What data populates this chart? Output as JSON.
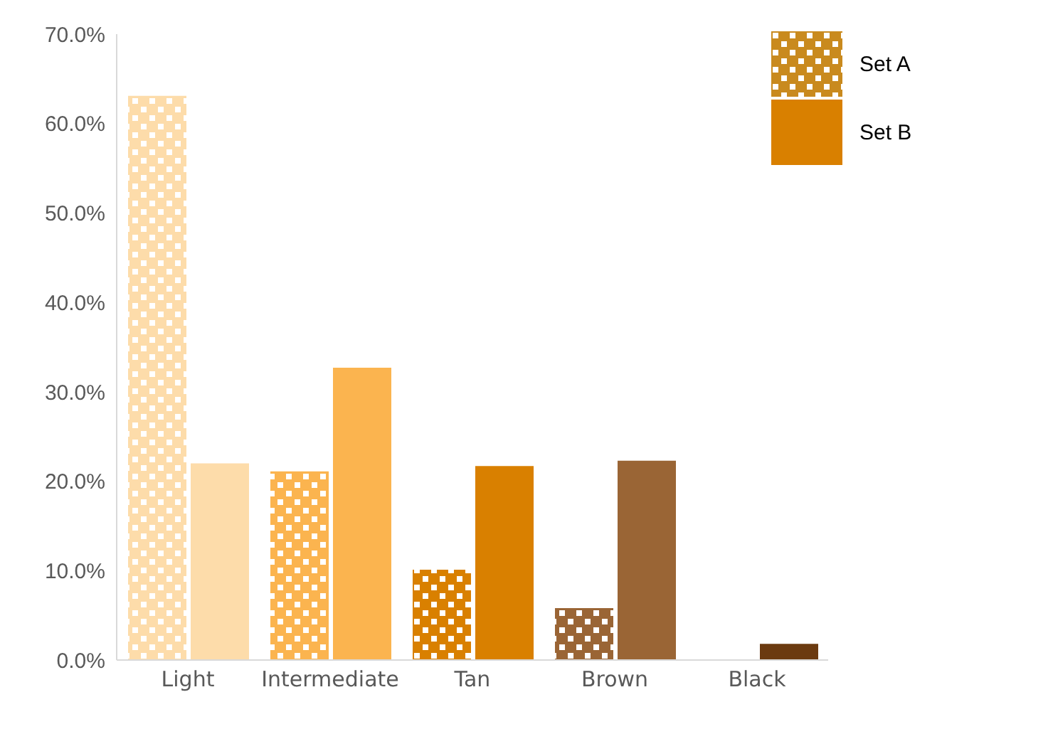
{
  "chart_data": {
    "type": "bar",
    "categories": [
      "Light",
      "Intermediate",
      "Tan",
      "Brown",
      "Black"
    ],
    "series": [
      {
        "name": "Set A",
        "color": "#c98a1e",
        "colors": [
          "#fddcaa",
          "#fbb44f",
          "#d98000",
          "#9a6535",
          "#6b3a10"
        ],
        "values": [
          63.1,
          21.1,
          10.1,
          5.8,
          null
        ]
      },
      {
        "name": "Set B",
        "color": "#d98000",
        "colors": [
          "#fddcaa",
          "#fbb44f",
          "#d98000",
          "#9a6535",
          "#6b3a10"
        ],
        "values": [
          22.0,
          32.7,
          21.7,
          22.3,
          1.8
        ]
      }
    ],
    "ylim": [
      0,
      70
    ],
    "yticks": [
      {
        "value": 0,
        "label": "0.0%"
      },
      {
        "value": 10,
        "label": "10.0%"
      },
      {
        "value": 20,
        "label": "20.0%"
      },
      {
        "value": 30,
        "label": "30.0%"
      },
      {
        "value": 40,
        "label": "40.0%"
      },
      {
        "value": 50,
        "label": "50.0%"
      },
      {
        "value": 60,
        "label": "60.0%"
      },
      {
        "value": 70,
        "label": "70.0%"
      }
    ],
    "grid": false,
    "legend": "top right"
  }
}
